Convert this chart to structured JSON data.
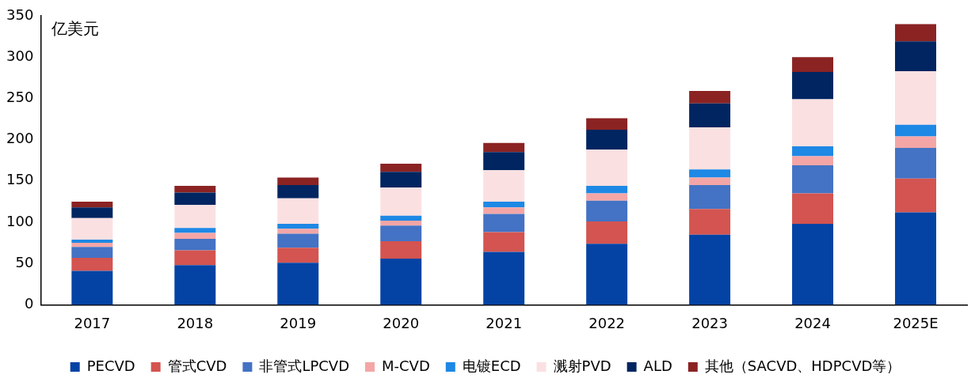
{
  "chart_data": {
    "type": "bar",
    "stacked": true,
    "ylabel": "亿美元",
    "categories": [
      "2017",
      "2018",
      "2019",
      "2020",
      "2021",
      "2022",
      "2023",
      "2024",
      "2025E"
    ],
    "ylim": [
      0,
      350
    ],
    "yticks": [
      0,
      50,
      100,
      150,
      200,
      250,
      300,
      350
    ],
    "grid": false,
    "legend": "bottom",
    "series": [
      {
        "name": "PECVD",
        "color": "#0443a4",
        "values": [
          41,
          48,
          51,
          56,
          64,
          74,
          85,
          98,
          112
        ]
      },
      {
        "name": "管式CVD",
        "color": "#d35450",
        "values": [
          16,
          18,
          18,
          21,
          24,
          27,
          31,
          37,
          41
        ]
      },
      {
        "name": "非管式LPCVD",
        "color": "#4472c4",
        "values": [
          13,
          14,
          17,
          19,
          22,
          25,
          29,
          34,
          37
        ]
      },
      {
        "name": "M-CVD",
        "color": "#f4a6a6",
        "values": [
          5,
          7,
          6,
          6,
          8,
          9,
          9,
          11,
          14
        ]
      },
      {
        "name": "电镀ECD",
        "color": "#1e88e5",
        "values": [
          4,
          6,
          6,
          6,
          7,
          9,
          10,
          12,
          14
        ]
      },
      {
        "name": "溅射PVD",
        "color": "#fbe0e2",
        "values": [
          26,
          28,
          31,
          34,
          38,
          44,
          51,
          57,
          65
        ]
      },
      {
        "name": "ALD",
        "color": "#002560",
        "values": [
          13,
          15,
          16,
          19,
          22,
          24,
          29,
          33,
          36
        ]
      },
      {
        "name": "其他（SACVD、HDPCVD等）",
        "color": "#8b2323",
        "values": [
          7,
          8,
          9,
          10,
          11,
          14,
          15,
          18,
          21
        ]
      }
    ]
  }
}
